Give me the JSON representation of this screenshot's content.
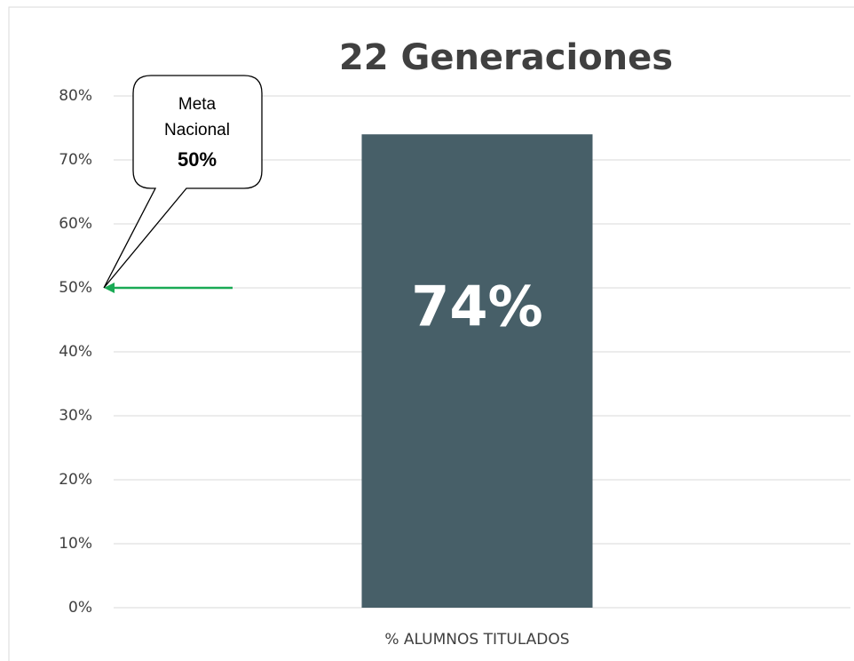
{
  "chart_data": {
    "type": "bar",
    "title": "22 Generaciones",
    "categories": [
      "% ALUMNOS TITULADOS"
    ],
    "values": [
      74
    ],
    "value_labels": [
      "74%"
    ],
    "color": "#475f68",
    "ylim": [
      0,
      80
    ],
    "yticks": [
      {
        "value": 0,
        "label": "0%"
      },
      {
        "value": 10,
        "label": "10%"
      },
      {
        "value": 20,
        "label": "20%"
      },
      {
        "value": 30,
        "label": "30%"
      },
      {
        "value": 40,
        "label": "40%"
      },
      {
        "value": 50,
        "label": "50%"
      },
      {
        "value": 60,
        "label": "60%"
      },
      {
        "value": 70,
        "label": "70%"
      },
      {
        "value": 80,
        "label": "80%"
      }
    ],
    "grid": true,
    "annotation": {
      "lines": [
        "Meta",
        "Nacional"
      ],
      "value": 50,
      "label": "50%",
      "color": "#1aaa55"
    }
  }
}
